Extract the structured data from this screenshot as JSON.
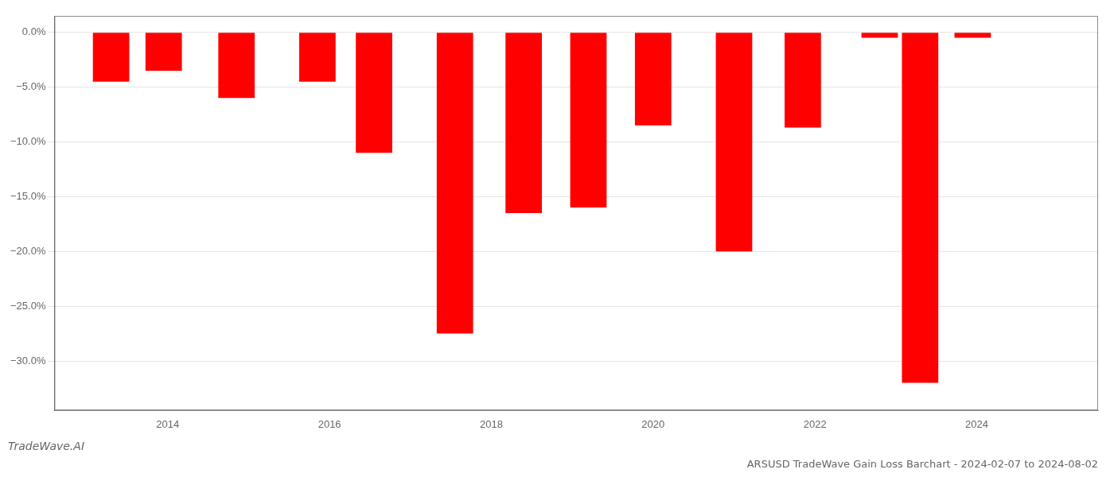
{
  "chart_data": {
    "type": "bar",
    "title": "ARSUSD TradeWave Gain Loss Barchart - 2024-02-07 to 2024-08-02",
    "annotations": [
      "TradeWave.AI"
    ],
    "x": [
      2013.3,
      2013.95,
      2014.85,
      2015.85,
      2016.55,
      2017.55,
      2018.4,
      2019.2,
      2020.0,
      2021.0,
      2021.85,
      2022.8,
      2023.3,
      2023.95
    ],
    "values": [
      -4.5,
      -3.5,
      -6.0,
      -4.5,
      -11.0,
      -27.5,
      -16.5,
      -16.0,
      -8.5,
      -20.0,
      -8.7,
      -0.5,
      -32.0,
      -0.5
    ],
    "color": "#ff0000",
    "xlim": [
      2012.6,
      2025.5
    ],
    "xticks": [
      2014,
      2016,
      2018,
      2020,
      2022,
      2024
    ],
    "ylim": [
      -34.5,
      1.5
    ],
    "yticks": [
      {
        "value": 0.0,
        "label": "0.0%"
      },
      {
        "value": -5.0,
        "label": "−5.0%"
      },
      {
        "value": -10.0,
        "label": "−10.0%"
      },
      {
        "value": -15.0,
        "label": "−15.0%"
      },
      {
        "value": -20.0,
        "label": "−20.0%"
      },
      {
        "value": -25.0,
        "label": "−25.0%"
      },
      {
        "value": -30.0,
        "label": "−30.0%"
      }
    ],
    "grid": "y"
  }
}
